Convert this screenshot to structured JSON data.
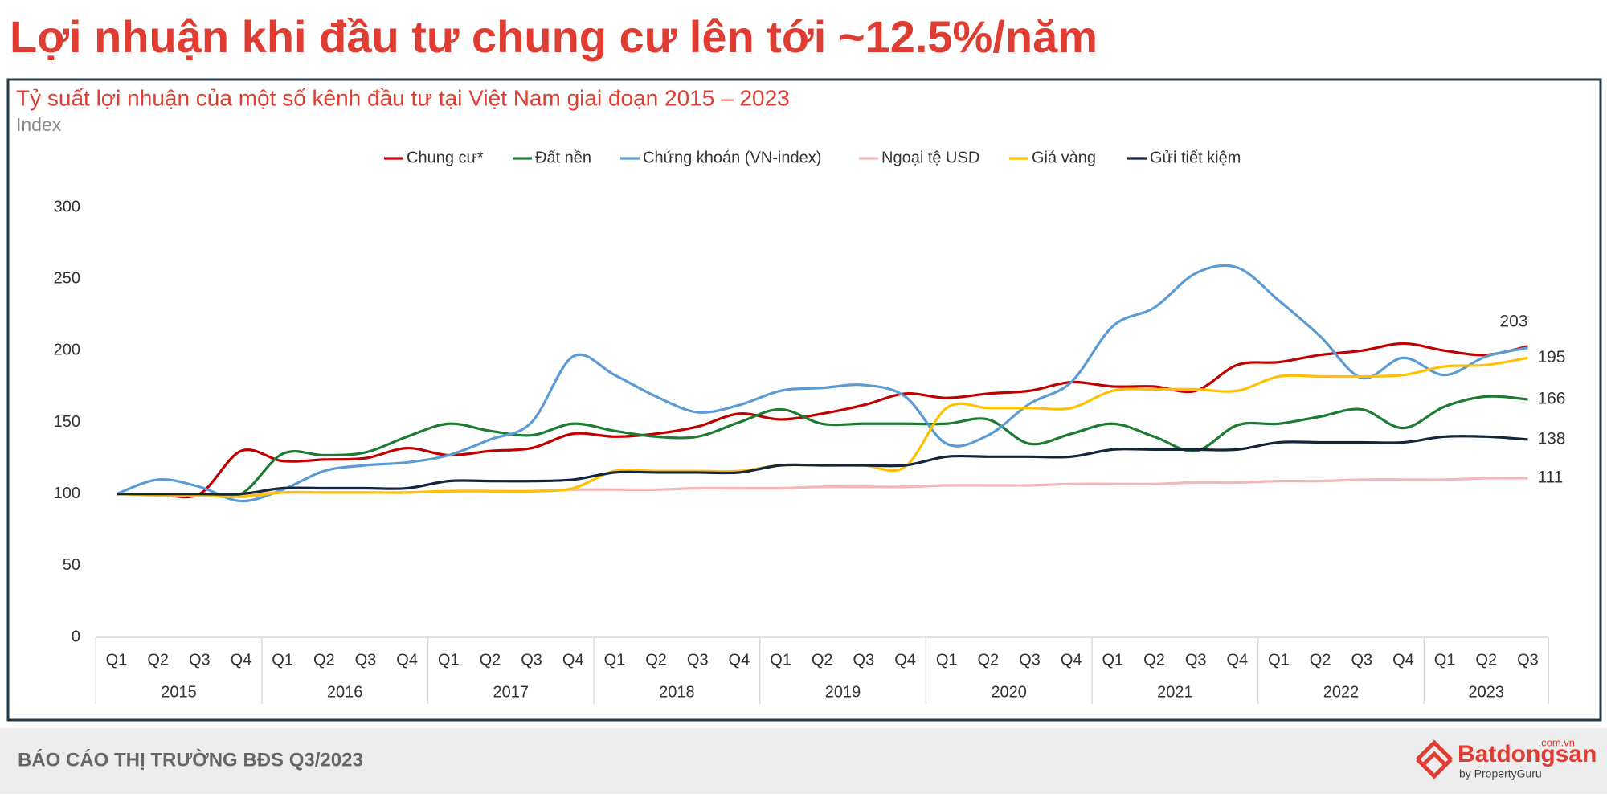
{
  "header": {
    "title": "Lợi nhuận khi đầu tư chung cư lên tới ~12.5%/năm"
  },
  "chart_data": {
    "type": "line",
    "title": "Tỷ suất lợi nhuận của một số kênh đầu tư tại Việt Nam giai đoạn 2015 – 2023",
    "y_label": "Index",
    "categories": [
      "Q1",
      "Q2",
      "Q3",
      "Q4",
      "Q1",
      "Q2",
      "Q3",
      "Q4",
      "Q1",
      "Q2",
      "Q3",
      "Q4",
      "Q1",
      "Q2",
      "Q3",
      "Q4",
      "Q1",
      "Q2",
      "Q3",
      "Q4",
      "Q1",
      "Q2",
      "Q3",
      "Q4",
      "Q1",
      "Q2",
      "Q3",
      "Q4",
      "Q1",
      "Q2",
      "Q3",
      "Q4",
      "Q1",
      "Q2",
      "Q3"
    ],
    "years": [
      "2015",
      "2016",
      "2017",
      "2018",
      "2019",
      "2020",
      "2021",
      "2022",
      "2023"
    ],
    "ylim": [
      0,
      300
    ],
    "yticks": [
      0,
      50,
      100,
      150,
      200,
      250,
      300
    ],
    "series": [
      {
        "name": "Chung cư*",
        "color": "#c00000",
        "values": [
          100,
          100,
          100,
          130,
          123,
          124,
          125,
          132,
          127,
          130,
          132,
          142,
          140,
          142,
          147,
          156,
          152,
          156,
          162,
          170,
          167,
          170,
          172,
          178,
          175,
          175,
          172,
          190,
          192,
          197,
          200,
          205,
          200,
          197,
          203
        ]
      },
      {
        "name": "Đất nền",
        "color": "#1e7b34",
        "values": [
          100,
          100,
          100,
          100,
          128,
          127,
          129,
          140,
          149,
          144,
          141,
          149,
          144,
          140,
          140,
          150,
          159,
          149,
          149,
          149,
          149,
          152,
          135,
          142,
          149,
          140,
          130,
          148,
          149,
          154,
          159,
          146,
          161,
          168,
          166
        ]
      },
      {
        "name": "Chứng khoán (VN-index)",
        "color": "#5b9bd5",
        "values": [
          100,
          110,
          105,
          95,
          103,
          116,
          120,
          122,
          127,
          138,
          150,
          196,
          183,
          168,
          157,
          162,
          172,
          174,
          176,
          168,
          135,
          141,
          163,
          178,
          217,
          230,
          254,
          258,
          235,
          210,
          181,
          195,
          183,
          196,
          202
        ]
      },
      {
        "name": "Ngoại tệ USD",
        "color": "#f4b6b6",
        "values": [
          100,
          100,
          100,
          100,
          101,
          101,
          101,
          101,
          102,
          102,
          102,
          103,
          103,
          103,
          104,
          104,
          104,
          105,
          105,
          105,
          106,
          106,
          106,
          107,
          107,
          107,
          108,
          108,
          109,
          109,
          110,
          110,
          110,
          111,
          111
        ]
      },
      {
        "name": "Giá vàng",
        "color": "#ffc000",
        "values": [
          100,
          99,
          99,
          98,
          101,
          101,
          101,
          101,
          102,
          102,
          102,
          104,
          116,
          116,
          116,
          116,
          120,
          120,
          120,
          119,
          160,
          160,
          160,
          160,
          172,
          173,
          173,
          172,
          182,
          182,
          182,
          183,
          189,
          190,
          195
        ]
      },
      {
        "name": "Gửi tiết kiệm",
        "color": "#13263b",
        "values": [
          100,
          100,
          100,
          100,
          104,
          104,
          104,
          104,
          109,
          109,
          109,
          110,
          115,
          115,
          115,
          115,
          120,
          120,
          120,
          120,
          126,
          126,
          126,
          126,
          131,
          131,
          131,
          131,
          136,
          136,
          136,
          136,
          140,
          140,
          138
        ]
      }
    ]
  },
  "footer": {
    "report": "BÁO CÁO THỊ TRƯỜNG BĐS Q3/2023",
    "logo": {
      "name": "Batdongsan",
      "domain": ".com.vn",
      "tagline": "by PropertyGuru"
    }
  }
}
